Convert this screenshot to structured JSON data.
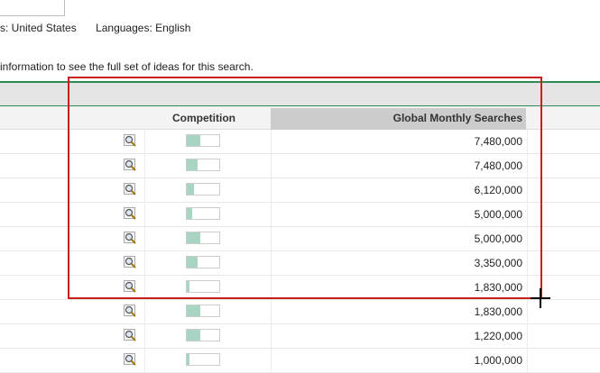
{
  "filters": {
    "locations": "s: United States",
    "languages": "Languages: English"
  },
  "info_text": "information to see the full set of ideas for this search.",
  "table": {
    "headers": {
      "competition": "Competition",
      "global_monthly_searches": "Global Monthly Searches"
    },
    "rows": [
      {
        "competition": 0.42,
        "searches": "7,480,000"
      },
      {
        "competition": 0.32,
        "searches": "7,480,000"
      },
      {
        "competition": 0.22,
        "searches": "6,120,000"
      },
      {
        "competition": 0.18,
        "searches": "5,000,000"
      },
      {
        "competition": 0.42,
        "searches": "5,000,000"
      },
      {
        "competition": 0.32,
        "searches": "3,350,000"
      },
      {
        "competition": 0.08,
        "searches": "1,830,000"
      },
      {
        "competition": 0.42,
        "searches": "1,830,000"
      },
      {
        "competition": 0.42,
        "searches": "1,220,000"
      },
      {
        "competition": 0.08,
        "searches": "1,000,000"
      }
    ]
  },
  "colors": {
    "accent_green": "#2e8b57",
    "competition_fill": "#a8d5c2",
    "highlight_red": "#c81e1e"
  },
  "icons": {
    "row_action": "magnifier-icon",
    "cursor": "crosshair-cursor"
  }
}
